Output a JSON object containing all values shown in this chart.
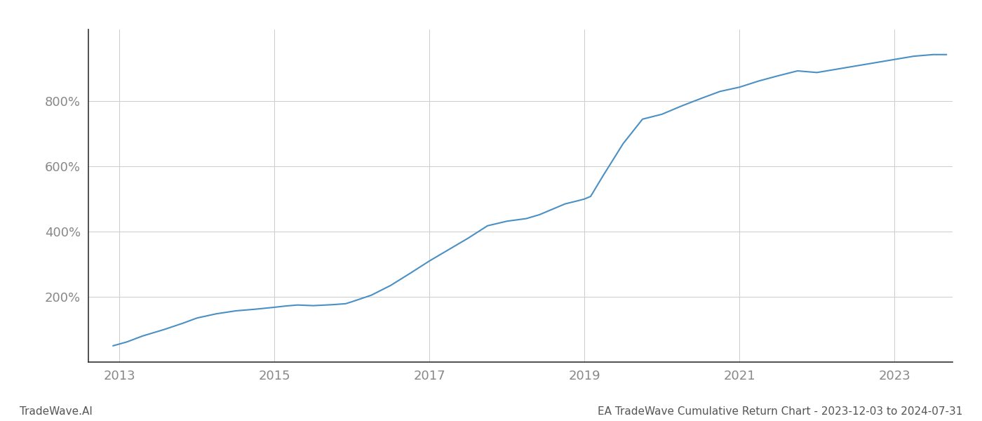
{
  "title": "",
  "footer_left": "TradeWave.AI",
  "footer_right": "EA TradeWave Cumulative Return Chart - 2023-12-03 to 2024-07-31",
  "line_color": "#4a90c4",
  "background_color": "#ffffff",
  "grid_color": "#cccccc",
  "x_years": [
    2013,
    2015,
    2017,
    2019,
    2021,
    2023
  ],
  "xlim": [
    2012.6,
    2023.75
  ],
  "ylim": [
    0,
    1020
  ],
  "ytick_values": [
    200,
    400,
    600,
    800
  ],
  "ytick_labels": [
    "200%",
    "400%",
    "600%",
    "800%"
  ],
  "axis_label_color": "#888888",
  "footer_color": "#555555",
  "spine_color": "#333333",
  "data_x": [
    2012.92,
    2013.1,
    2013.3,
    2013.58,
    2013.83,
    2014.0,
    2014.25,
    2014.5,
    2014.75,
    2015.0,
    2015.15,
    2015.3,
    2015.5,
    2015.75,
    2015.92,
    2016.0,
    2016.25,
    2016.5,
    2016.75,
    2017.0,
    2017.25,
    2017.5,
    2017.75,
    2018.0,
    2018.25,
    2018.42,
    2018.58,
    2018.75,
    2018.92,
    2019.0,
    2019.08,
    2019.25,
    2019.5,
    2019.75,
    2020.0,
    2020.25,
    2020.5,
    2020.75,
    2021.0,
    2021.25,
    2021.5,
    2021.75,
    2022.0,
    2022.25,
    2022.5,
    2022.75,
    2023.0,
    2023.25,
    2023.5,
    2023.67
  ],
  "data_y": [
    50,
    62,
    80,
    100,
    120,
    135,
    148,
    157,
    162,
    168,
    172,
    175,
    173,
    176,
    179,
    185,
    205,
    235,
    272,
    310,
    345,
    380,
    418,
    432,
    440,
    452,
    468,
    485,
    495,
    500,
    508,
    575,
    670,
    745,
    760,
    785,
    808,
    830,
    843,
    862,
    878,
    893,
    888,
    898,
    908,
    918,
    928,
    938,
    943,
    943
  ]
}
